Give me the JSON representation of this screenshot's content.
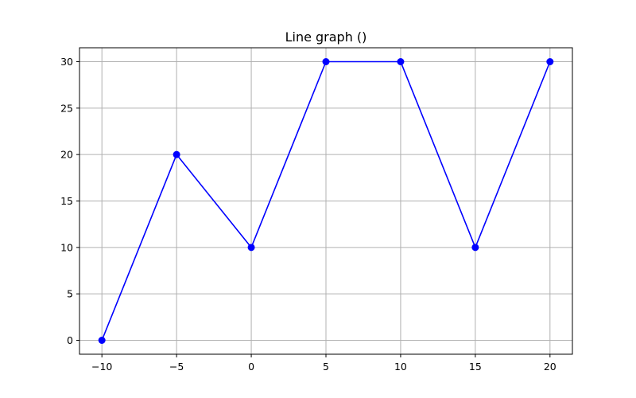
{
  "chart_data": {
    "type": "line",
    "title": "Line graph ()",
    "xlabel": "",
    "ylabel": "",
    "x": [
      -10,
      -5,
      0,
      5,
      10,
      15,
      20
    ],
    "series": [
      {
        "values": [
          0,
          20,
          10,
          30,
          30,
          10,
          30
        ],
        "color": "#0000ff",
        "marker": "circle"
      }
    ],
    "xlim": [
      -11.5,
      21.5
    ],
    "ylim": [
      -1.5,
      31.5
    ],
    "xticks": [
      -10,
      -5,
      0,
      5,
      10,
      15,
      20
    ],
    "xtick_labels": [
      "−10",
      "−5",
      "0",
      "5",
      "10",
      "15",
      "20"
    ],
    "yticks": [
      0,
      5,
      10,
      15,
      20,
      25,
      30
    ],
    "ytick_labels": [
      "0",
      "5",
      "10",
      "15",
      "20",
      "25",
      "30"
    ],
    "grid": true
  }
}
